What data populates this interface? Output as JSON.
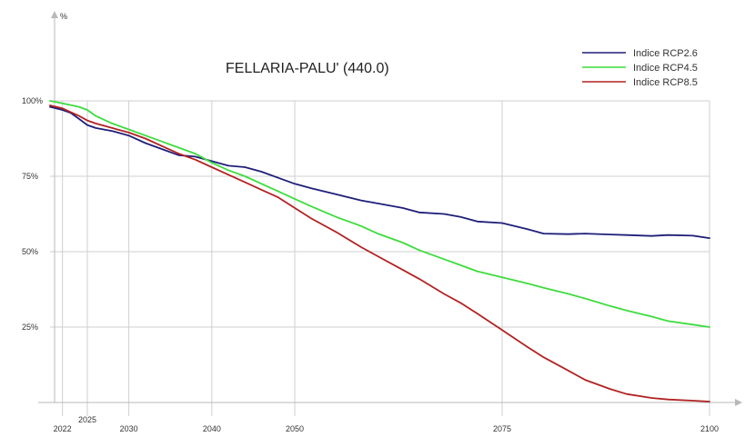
{
  "chart_data": {
    "type": "line",
    "title": "FELLARIA-PALU' (440.0)",
    "ylabel": "%",
    "xlabel": "",
    "xlim": [
      2020.5,
      2100
    ],
    "ylim": [
      0,
      100
    ],
    "x_ticks": [
      2022,
      2025,
      2030,
      2040,
      2050,
      2075,
      2100
    ],
    "x_tick_labels": [
      "2022",
      "2025",
      "2030",
      "2040",
      "2050",
      "2075",
      "2100"
    ],
    "y_ticks": [
      25,
      50,
      75,
      100
    ],
    "y_tick_labels": [
      "25%",
      "50%",
      "75%",
      "100%"
    ],
    "grid": true,
    "legend_position": "top-right",
    "series": [
      {
        "name": "Indice RCP2.6",
        "color": "#1f1f7a",
        "x": [
          2020.5,
          2022,
          2023,
          2024,
          2025,
          2026,
          2028,
          2030,
          2032,
          2034,
          2036,
          2038,
          2040,
          2042,
          2044,
          2046,
          2048,
          2050,
          2052,
          2055,
          2058,
          2060,
          2063,
          2065,
          2068,
          2070,
          2072,
          2075,
          2078,
          2080,
          2083,
          2085,
          2088,
          2090,
          2093,
          2095,
          2098,
          2100
        ],
        "values": [
          98,
          97,
          96,
          94,
          92,
          91,
          90,
          88.5,
          86,
          84,
          82,
          81.5,
          80,
          78.5,
          78,
          76.5,
          74.5,
          72.5,
          71,
          69,
          67,
          66,
          64.5,
          63,
          62.5,
          61.5,
          60,
          59.5,
          57.5,
          56,
          55.8,
          56,
          55.7,
          55.5,
          55.2,
          55.5,
          55.3,
          54.5
        ]
      },
      {
        "name": "Indice RCP4.5",
        "color": "#3ddc3d",
        "x": [
          2020.5,
          2022,
          2024,
          2025,
          2026,
          2028,
          2030,
          2032,
          2034,
          2036,
          2038,
          2040,
          2042,
          2044,
          2046,
          2048,
          2050,
          2052,
          2055,
          2058,
          2060,
          2063,
          2065,
          2068,
          2070,
          2072,
          2075,
          2078,
          2080,
          2083,
          2085,
          2088,
          2090,
          2093,
          2095,
          2098,
          2100
        ],
        "values": [
          100,
          99.2,
          98,
          97,
          95,
          92.5,
          90.5,
          88.5,
          86.5,
          84.5,
          82.5,
          79.5,
          77,
          75,
          72.5,
          70,
          67.5,
          65,
          61.5,
          58.5,
          56,
          53,
          50.5,
          47.5,
          45.5,
          43.5,
          41.5,
          39.5,
          38,
          36,
          34.5,
          32,
          30.5,
          28.5,
          27,
          25.8,
          25
        ]
      },
      {
        "name": "Indice RCP8.5",
        "color": "#b22222",
        "x": [
          2020.5,
          2022,
          2024,
          2025,
          2026,
          2028,
          2030,
          2032,
          2034,
          2036,
          2038,
          2040,
          2042,
          2044,
          2046,
          2048,
          2050,
          2052,
          2055,
          2058,
          2060,
          2063,
          2065,
          2068,
          2070,
          2072,
          2075,
          2078,
          2080,
          2083,
          2085,
          2088,
          2090,
          2093,
          2095,
          2098,
          2100
        ],
        "values": [
          98.5,
          97.5,
          95,
          93.5,
          92.5,
          91,
          89.5,
          87.5,
          85,
          82.5,
          80.5,
          78,
          75.5,
          73,
          70.5,
          68,
          64.5,
          61,
          56.5,
          51.5,
          48.5,
          44,
          41,
          36,
          33,
          29.5,
          24,
          18.5,
          15,
          10.5,
          7.5,
          4.5,
          2.8,
          1.5,
          1,
          0.6,
          0.3
        ]
      }
    ]
  }
}
